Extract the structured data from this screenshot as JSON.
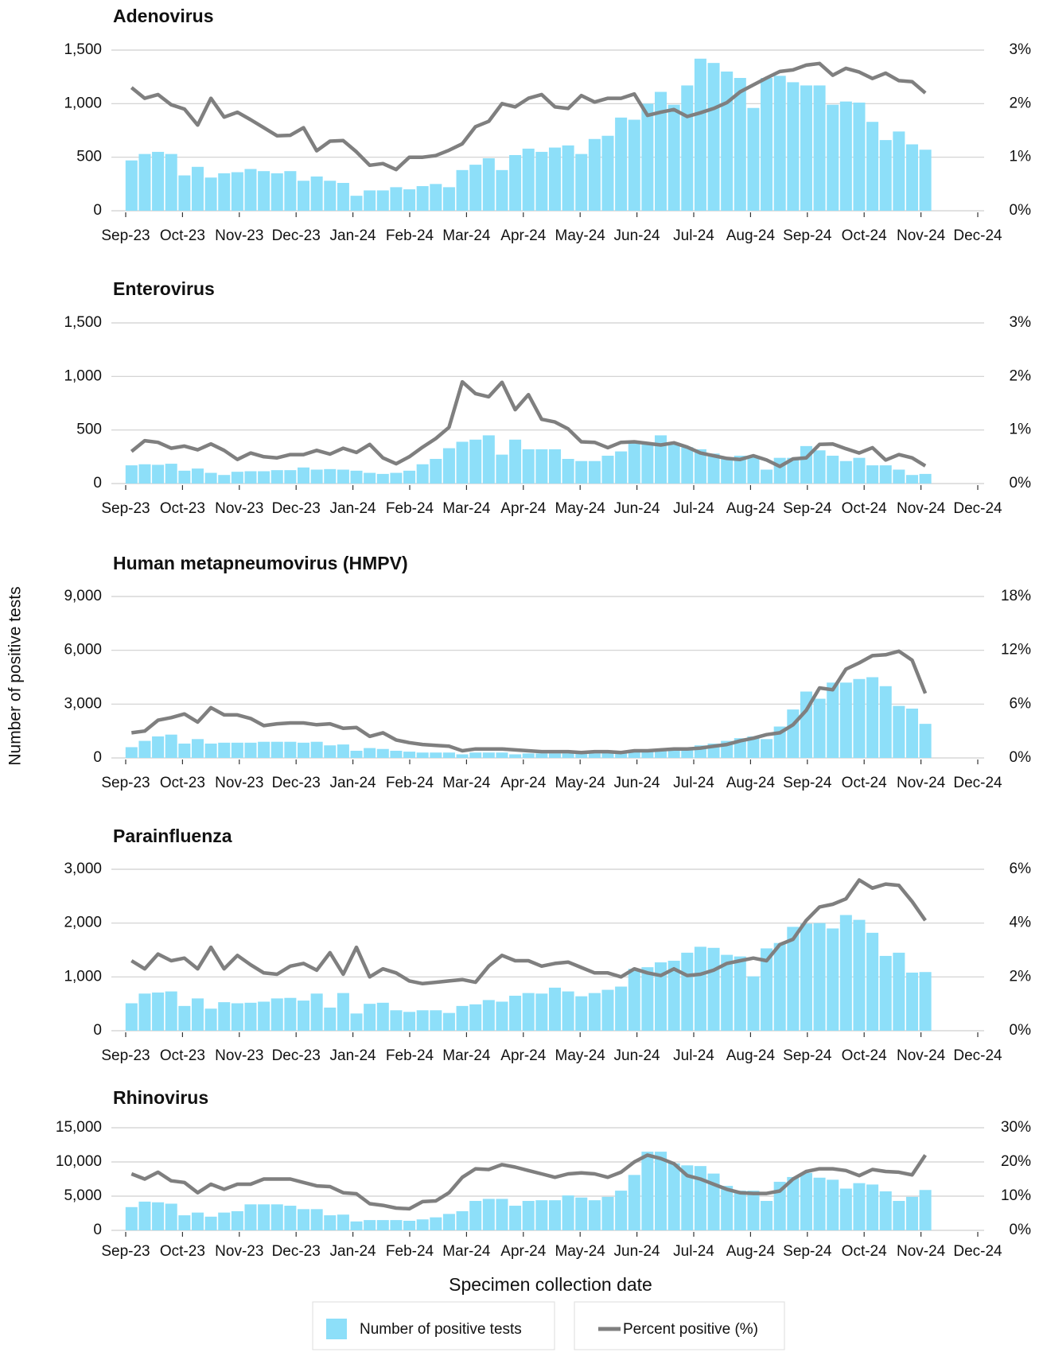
{
  "y_label": "Number of positive tests",
  "x_label": "Specimen collection date",
  "legend": [
    {
      "name": "Number of positive tests"
    },
    {
      "name": "Percent positive (%)"
    }
  ],
  "chart_data": [
    {
      "type": "combo",
      "title": "Adenovirus",
      "xticks": [
        "Sep-23",
        "Oct-23",
        "Nov-23",
        "Dec-23",
        "Jan-24",
        "Feb-24",
        "Mar-24",
        "Apr-24",
        "May-24",
        "Jun-24",
        "Jul-24",
        "Aug-24",
        "Sep-24",
        "Oct-24",
        "Nov-24",
        "Dec-24"
      ],
      "ylim": [
        0,
        1500
      ],
      "yticks": [
        0,
        500,
        {
          "value": 1000,
          "label": "1,000"
        },
        {
          "value": 1500,
          "label": "1,500"
        }
      ],
      "y2lim": [
        0,
        3
      ],
      "y2ticks": [
        {
          "value": 0,
          "label": "0%"
        },
        {
          "value": 1,
          "label": "1%"
        },
        {
          "value": 2,
          "label": "2%"
        },
        {
          "value": 3,
          "label": "3%"
        }
      ],
      "grid": true,
      "series": [
        {
          "kind": "bar",
          "color": "#8ddff9",
          "values": [
            470,
            530,
            550,
            530,
            330,
            410,
            310,
            350,
            360,
            390,
            370,
            350,
            370,
            280,
            320,
            280,
            260,
            140,
            190,
            190,
            220,
            200,
            230,
            250,
            220,
            380,
            430,
            490,
            380,
            520,
            580,
            550,
            590,
            610,
            530,
            670,
            700,
            870,
            850,
            1000,
            1110,
            990,
            1170,
            1420,
            1380,
            1300,
            1240,
            960,
            1240,
            1260,
            1200,
            1170,
            1170,
            990,
            1020,
            1010,
            830,
            660,
            740,
            620,
            570
          ]
        },
        {
          "kind": "line",
          "axis": "y2",
          "color": "#7f7f7f",
          "values": [
            2.3,
            2.1,
            2.17,
            1.98,
            1.9,
            1.6,
            2.1,
            1.75,
            1.84,
            1.7,
            1.55,
            1.4,
            1.41,
            1.55,
            1.12,
            1.3,
            1.31,
            1.1,
            0.85,
            0.88,
            0.77,
            1.0,
            1.0,
            1.03,
            1.13,
            1.25,
            1.57,
            1.67,
            2.0,
            1.94,
            2.1,
            2.17,
            1.94,
            1.91,
            2.15,
            2.03,
            2.1,
            2.1,
            2.18,
            1.78,
            1.84,
            1.89,
            1.76,
            1.83,
            1.91,
            2.02,
            2.22,
            2.35,
            2.48,
            2.6,
            2.63,
            2.72,
            2.75,
            2.53,
            2.66,
            2.59,
            2.47,
            2.57,
            2.43,
            2.41,
            2.2
          ]
        }
      ]
    },
    {
      "type": "combo",
      "title": "Enterovirus",
      "xticks": [
        "Sep-23",
        "Oct-23",
        "Nov-23",
        "Dec-23",
        "Jan-24",
        "Feb-24",
        "Mar-24",
        "Apr-24",
        "May-24",
        "Jun-24",
        "Jul-24",
        "Aug-24",
        "Sep-24",
        "Oct-24",
        "Nov-24",
        "Dec-24"
      ],
      "ylim": [
        0,
        1500
      ],
      "yticks": [
        0,
        500,
        {
          "value": 1000,
          "label": "1,000"
        },
        {
          "value": 1500,
          "label": "1,500"
        }
      ],
      "y2lim": [
        0,
        3
      ],
      "y2ticks": [
        {
          "value": 0,
          "label": "0%"
        },
        {
          "value": 1,
          "label": "1%"
        },
        {
          "value": 2,
          "label": "2%"
        },
        {
          "value": 3,
          "label": "3%"
        }
      ],
      "grid": true,
      "series": [
        {
          "kind": "bar",
          "color": "#8ddff9",
          "values": [
            170,
            180,
            175,
            185,
            120,
            140,
            100,
            80,
            110,
            115,
            115,
            125,
            125,
            150,
            130,
            135,
            130,
            120,
            100,
            90,
            100,
            120,
            180,
            230,
            330,
            390,
            410,
            450,
            270,
            410,
            320,
            320,
            320,
            230,
            210,
            210,
            260,
            300,
            380,
            370,
            450,
            380,
            340,
            320,
            280,
            240,
            260,
            250,
            130,
            240,
            240,
            350,
            310,
            260,
            210,
            240,
            170,
            170,
            130,
            80,
            90
          ]
        },
        {
          "kind": "line",
          "axis": "y2",
          "color": "#7f7f7f",
          "values": [
            0.6,
            0.8,
            0.77,
            0.66,
            0.7,
            0.63,
            0.74,
            0.62,
            0.45,
            0.57,
            0.5,
            0.48,
            0.54,
            0.54,
            0.62,
            0.55,
            0.66,
            0.58,
            0.73,
            0.48,
            0.37,
            0.5,
            0.68,
            0.84,
            1.05,
            1.9,
            1.68,
            1.62,
            1.89,
            1.38,
            1.66,
            1.2,
            1.15,
            1.02,
            0.78,
            0.77,
            0.67,
            0.77,
            0.78,
            0.75,
            0.72,
            0.76,
            0.68,
            0.57,
            0.52,
            0.47,
            0.45,
            0.52,
            0.44,
            0.32,
            0.46,
            0.48,
            0.73,
            0.74,
            0.65,
            0.57,
            0.67,
            0.44,
            0.54,
            0.48,
            0.33
          ]
        }
      ]
    },
    {
      "type": "combo",
      "title": "Human metapneumovirus (HMPV)",
      "xticks": [
        "Sep-23",
        "Oct-23",
        "Nov-23",
        "Dec-23",
        "Jan-24",
        "Feb-24",
        "Mar-24",
        "Apr-24",
        "May-24",
        "Jun-24",
        "Jul-24",
        "Aug-24",
        "Sep-24",
        "Oct-24",
        "Nov-24",
        "Dec-24"
      ],
      "ylim": [
        0,
        9000
      ],
      "yticks": [
        0,
        {
          "value": 3000,
          "label": "3,000"
        },
        {
          "value": 6000,
          "label": "6,000"
        },
        {
          "value": 9000,
          "label": "9,000"
        }
      ],
      "y2lim": [
        0,
        18
      ],
      "y2ticks": [
        {
          "value": 0,
          "label": "0%"
        },
        {
          "value": 6,
          "label": "6%"
        },
        {
          "value": 12,
          "label": "12%"
        },
        {
          "value": 18,
          "label": "18%"
        }
      ],
      "grid": true,
      "series": [
        {
          "kind": "bar",
          "color": "#8ddff9",
          "values": [
            600,
            950,
            1200,
            1300,
            800,
            1050,
            800,
            850,
            850,
            850,
            900,
            900,
            900,
            850,
            900,
            700,
            750,
            400,
            550,
            500,
            400,
            350,
            300,
            300,
            300,
            200,
            300,
            300,
            300,
            200,
            250,
            250,
            250,
            250,
            250,
            250,
            300,
            300,
            350,
            350,
            450,
            500,
            550,
            700,
            800,
            950,
            1100,
            1200,
            1050,
            1750,
            2700,
            3700,
            3300,
            4200,
            4200,
            4400,
            4500,
            4000,
            2900,
            2750,
            1900
          ]
        },
        {
          "kind": "line",
          "axis": "y2",
          "color": "#7f7f7f",
          "values": [
            2.8,
            3.0,
            4.2,
            4.5,
            4.9,
            4.0,
            5.6,
            4.8,
            4.8,
            4.4,
            3.6,
            3.8,
            3.9,
            3.9,
            3.7,
            3.8,
            3.3,
            3.4,
            2.4,
            2.8,
            2.0,
            1.7,
            1.5,
            1.4,
            1.3,
            0.8,
            1.0,
            1.0,
            1.0,
            0.9,
            0.8,
            0.7,
            0.7,
            0.7,
            0.6,
            0.7,
            0.7,
            0.6,
            0.8,
            0.8,
            0.9,
            1.0,
            1.0,
            1.1,
            1.3,
            1.5,
            1.9,
            2.2,
            2.6,
            2.8,
            3.7,
            5.3,
            7.8,
            7.6,
            9.9,
            10.6,
            11.4,
            11.5,
            11.9,
            10.9,
            7.2
          ]
        }
      ]
    },
    {
      "type": "combo",
      "title": "Parainfluenza",
      "xticks": [
        "Sep-23",
        "Oct-23",
        "Nov-23",
        "Dec-23",
        "Jan-24",
        "Feb-24",
        "Mar-24",
        "Apr-24",
        "May-24",
        "Jun-24",
        "Jul-24",
        "Aug-24",
        "Sep-24",
        "Oct-24",
        "Nov-24",
        "Dec-24"
      ],
      "ylim": [
        0,
        3000
      ],
      "yticks": [
        0,
        {
          "value": 1000,
          "label": "1,000"
        },
        {
          "value": 2000,
          "label": "2,000"
        },
        {
          "value": 3000,
          "label": "3,000"
        }
      ],
      "y2lim": [
        0,
        6
      ],
      "y2ticks": [
        {
          "value": 0,
          "label": "0%"
        },
        {
          "value": 2,
          "label": "2%"
        },
        {
          "value": 4,
          "label": "4%"
        },
        {
          "value": 6,
          "label": "6%"
        }
      ],
      "grid": true,
      "series": [
        {
          "kind": "bar",
          "color": "#8ddff9",
          "values": [
            510,
            690,
            710,
            730,
            460,
            600,
            410,
            530,
            510,
            520,
            540,
            600,
            610,
            560,
            690,
            430,
            700,
            320,
            500,
            520,
            380,
            350,
            380,
            380,
            330,
            460,
            490,
            570,
            540,
            650,
            700,
            690,
            800,
            730,
            640,
            700,
            760,
            820,
            1150,
            1180,
            1270,
            1300,
            1450,
            1560,
            1540,
            1410,
            1380,
            1010,
            1530,
            1630,
            1930,
            1990,
            2000,
            1900,
            2150,
            2060,
            1820,
            1390,
            1450,
            1080,
            1090
          ]
        },
        {
          "kind": "line",
          "axis": "y2",
          "color": "#7f7f7f",
          "values": [
            2.6,
            2.3,
            2.85,
            2.6,
            2.7,
            2.3,
            3.1,
            2.3,
            2.8,
            2.45,
            2.15,
            2.1,
            2.4,
            2.5,
            2.25,
            2.9,
            2.1,
            3.1,
            2.0,
            2.3,
            2.15,
            1.85,
            1.75,
            1.8,
            1.85,
            1.9,
            1.8,
            2.4,
            2.8,
            2.6,
            2.6,
            2.4,
            2.5,
            2.55,
            2.35,
            2.15,
            2.15,
            2.0,
            2.3,
            2.15,
            2.05,
            2.3,
            2.05,
            2.1,
            2.25,
            2.5,
            2.6,
            2.7,
            2.6,
            3.2,
            3.4,
            4.1,
            4.6,
            4.7,
            4.9,
            5.6,
            5.3,
            5.45,
            5.4,
            4.8,
            4.1
          ]
        }
      ]
    },
    {
      "type": "combo",
      "title": "Rhinovirus",
      "xticks": [
        "Sep-23",
        "Oct-23",
        "Nov-23",
        "Dec-23",
        "Jan-24",
        "Feb-24",
        "Mar-24",
        "Apr-24",
        "May-24",
        "Jun-24",
        "Jul-24",
        "Aug-24",
        "Sep-24",
        "Oct-24",
        "Nov-24",
        "Dec-24"
      ],
      "ylim": [
        0,
        15000
      ],
      "yticks": [
        0,
        {
          "value": 5000,
          "label": "5,000"
        },
        {
          "value": 10000,
          "label": "10,000"
        },
        {
          "value": 15000,
          "label": "15,000"
        }
      ],
      "y2lim": [
        0,
        30
      ],
      "y2ticks": [
        {
          "value": 0,
          "label": "0%"
        },
        {
          "value": 10,
          "label": "10%"
        },
        {
          "value": 20,
          "label": "20%"
        },
        {
          "value": 30,
          "label": "30%"
        }
      ],
      "grid": true,
      "series": [
        {
          "kind": "bar",
          "color": "#8ddff9",
          "values": [
            3400,
            4200,
            4100,
            3900,
            2200,
            2600,
            2000,
            2600,
            2800,
            3800,
            3800,
            3800,
            3600,
            3100,
            3100,
            2200,
            2300,
            1300,
            1500,
            1500,
            1500,
            1400,
            1600,
            1900,
            2400,
            2800,
            4300,
            4600,
            4600,
            3600,
            4300,
            4400,
            4400,
            5100,
            4800,
            4400,
            4900,
            5800,
            8100,
            11500,
            11500,
            9800,
            9500,
            9400,
            8300,
            6500,
            5800,
            5800,
            4300,
            7100,
            7800,
            8400,
            7700,
            7400,
            6100,
            6900,
            6700,
            5700,
            4300,
            4900,
            5900
          ]
        },
        {
          "kind": "line",
          "axis": "y2",
          "color": "#7f7f7f",
          "values": [
            16.5,
            15,
            17,
            14.5,
            14,
            11,
            13.5,
            12,
            13.5,
            13.5,
            15,
            15,
            15,
            14,
            13,
            12.8,
            11,
            10.7,
            7.8,
            7.3,
            6.5,
            6.3,
            8.4,
            8.6,
            11,
            15.5,
            18,
            17.8,
            19.2,
            18.5,
            17.5,
            16.5,
            15.5,
            16.5,
            16.8,
            16.5,
            15.5,
            17,
            20,
            22,
            21,
            19.5,
            16,
            15,
            13.5,
            12,
            11,
            10.8,
            10.8,
            11.5,
            15,
            17.2,
            18,
            18,
            17.5,
            16,
            17.8,
            17.2,
            17,
            16.2,
            22
          ]
        }
      ]
    }
  ]
}
